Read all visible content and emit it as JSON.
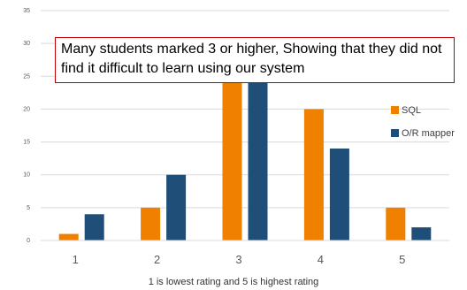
{
  "chart_data": {
    "type": "bar",
    "categories": [
      "1",
      "2",
      "3",
      "4",
      "5"
    ],
    "series": [
      {
        "name": "SQL",
        "values": [
          1,
          5,
          25,
          20,
          5
        ],
        "color": "#f08000"
      },
      {
        "name": "O/R mapper",
        "values": [
          4,
          10,
          25,
          14,
          2
        ],
        "color": "#1f4e79"
      }
    ],
    "ylim": [
      0,
      35
    ],
    "yticks": [
      "0",
      "5",
      "10",
      "15",
      "20",
      "25",
      "30",
      "35"
    ],
    "xlabel": "1 is lowest rating and 5 is highest rating",
    "ylabel": "",
    "title": "",
    "grid": true,
    "legend_position": "right",
    "annotation": "Many students marked 3 or higher, Showing that they did not find it difficult to learn using our system"
  }
}
